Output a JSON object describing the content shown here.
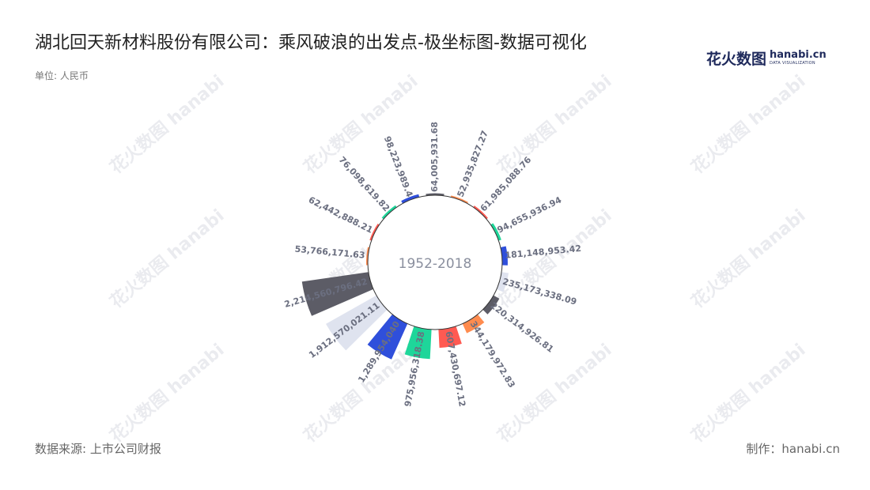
{
  "title": "湖北回天新材料股份有限公司：乘风破浪的出发点-极坐标图-数据可视化",
  "unit_label": "单位: 人民币",
  "logo": {
    "cn": "花火数图",
    "en": "hanabi.cn",
    "sub": "DATA VISUALIZATION"
  },
  "source": "数据来源: 上市公司财报",
  "credit": "制作：hanabi.cn",
  "chart_data": {
    "type": "bar",
    "coordinate": "polar",
    "center_label": "1952-2018",
    "values": [
      64005931.68,
      52935827.27,
      61985088.76,
      94655936.94,
      181148953.42,
      235173338.09,
      220314926.81,
      344179972.83,
      607430697.12,
      975956318.38,
      1289954040.0,
      1912570021.11,
      2214560796.42,
      53766171.63,
      62442888.21,
      76098619.82,
      98223989.4
    ],
    "value_labels": [
      "64,005,931.68",
      "52,935,827.27",
      "61,985,088.76",
      "94,655,936.94",
      "181,148,953.42",
      "235,173,338.09",
      "220,314,926.81",
      "344,179,972.83",
      "607,430,697.12",
      "975,956,318.38",
      "1,289,954,040",
      "1,912,570,021.11",
      "2,214,560,796.42",
      "53,766,171.63",
      "62,442,888.21",
      "76,098,619.82",
      "98,223,989.4"
    ],
    "colors": [
      "#5c5c66",
      "#ff8c4f",
      "#ff5a52",
      "#1ed69a",
      "#2f4fdb",
      "#dfe3ef"
    ]
  }
}
